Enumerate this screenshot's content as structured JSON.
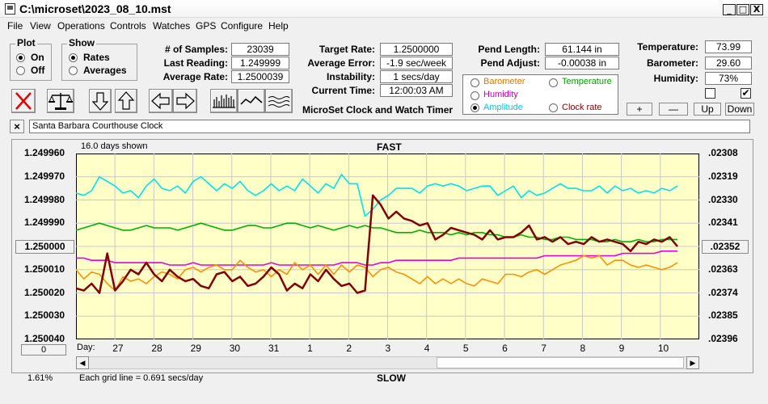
{
  "window": {
    "title": "C:\\microset\\2023_08_10.mst",
    "minimize_glyph": "_",
    "maximize_glyph": "□",
    "close_glyph": "X"
  },
  "menu": [
    "File",
    "View",
    "Operations",
    "Controls",
    "Watches",
    "GPS",
    "Configure",
    "Help"
  ],
  "plot_group": {
    "title": "Plot",
    "options": [
      "On",
      "Off"
    ],
    "selected": "On"
  },
  "show_group": {
    "title": "Show",
    "options": [
      "Rates",
      "Averages"
    ],
    "selected": "Rates"
  },
  "stats": {
    "samples_label": "# of Samples:",
    "samples": "23039",
    "last_reading_label": "Last Reading:",
    "last_reading": "1.249999",
    "average_rate_label": "Average Rate:",
    "average_rate": "1.2500039",
    "target_rate_label": "Target Rate:",
    "target_rate": "1.2500000",
    "average_error_label": "Average Error:",
    "average_error": "-1.9 sec/week",
    "instability_label": "Instability:",
    "instability": "1 secs/day",
    "current_time_label": "Current Time:",
    "current_time": "12:00:03 AM",
    "pend_length_label": "Pend Length:",
    "pend_length": "61.144 in",
    "pend_adjust_label": "Pend Adjust:",
    "pend_adjust": "-0.00038 in",
    "temperature_label": "Temperature:",
    "temperature": "73.99",
    "barometer_label": "Barometer:",
    "barometer": "29.60",
    "humidity_label": "Humidity:",
    "humidity": "73%"
  },
  "app_caption": "MicroSet Clock and Watch Timer",
  "aux_options": [
    {
      "label": "Barometer",
      "color": "#e07800"
    },
    {
      "label": "Temperature",
      "color": "#00a000"
    },
    {
      "label": "Humidity",
      "color": "#c000c0"
    },
    {
      "label": "Amplitude",
      "color": "#00c8e0"
    },
    {
      "label": "Clock rate",
      "color": "#800000"
    }
  ],
  "aux_selected": "Amplitude",
  "scale_buttons": {
    "plus": "+",
    "minus": "—",
    "up": "Up",
    "down": "Down"
  },
  "checkboxes": [
    false,
    true
  ],
  "clock_name": "Santa Barbara Courthouse Clock",
  "clock_close_glyph": "×",
  "plot": {
    "days_shown": "16.0 days shown",
    "top_label": "FAST",
    "bottom_label": "SLOW",
    "day_label": "Day:",
    "grid_note": "Each grid line = 0.691 secs/day",
    "percent": "1.61%",
    "center_button": "1.250000",
    "zero_button": "0",
    "right_button": ".02352"
  },
  "chart_data": {
    "type": "line",
    "background": "#ffffc8",
    "left_ticks": [
      "1.249960",
      "1.249970",
      "1.249980",
      "1.249990",
      "1.250000",
      "1.250010",
      "1.250020",
      "1.250030",
      "1.250040"
    ],
    "right_ticks": [
      ".02308",
      ".02319",
      ".02330",
      ".02341",
      ".02352",
      ".02363",
      ".02374",
      ".02385",
      ".02396"
    ],
    "x_ticks": [
      "27",
      "28",
      "29",
      "30",
      "31",
      "1",
      "2",
      "3",
      "4",
      "5",
      "6",
      "7",
      "8",
      "9",
      "10"
    ],
    "x_range": [
      0,
      16
    ],
    "y_range": [
      1.24996,
      1.25004
    ],
    "series": [
      {
        "color": "#00e0f0",
        "values": [
          1.249977,
          1.249978,
          1.249976,
          1.24997,
          1.249972,
          1.249974,
          1.249977,
          1.249976,
          1.249979,
          1.249974,
          1.249971,
          1.249975,
          1.249976,
          1.249974,
          1.249977,
          1.249972,
          1.24997,
          1.249973,
          1.249976,
          1.249973,
          1.249975,
          1.249972,
          1.249976,
          1.249978,
          1.249976,
          1.249973,
          1.249976,
          1.249974,
          1.249976,
          1.249971,
          1.249974,
          1.249977,
          1.249973,
          1.249975,
          1.249969,
          1.249973,
          1.249973,
          1.249987,
          1.249984,
          1.24998,
          1.249978,
          1.249975,
          1.249975,
          1.249975,
          1.249977,
          1.249974,
          1.249973,
          1.249974,
          1.249973,
          1.249974,
          1.249976,
          1.249975,
          1.249974,
          1.249974,
          1.249978,
          1.249976,
          1.249974,
          1.249979,
          1.249976,
          1.249978,
          1.249977,
          1.249975,
          1.249973,
          1.249975,
          1.249975,
          1.249976,
          1.249976,
          1.249974,
          1.249977,
          1.249974,
          1.249976,
          1.249975,
          1.249977,
          1.249976,
          1.249977,
          1.249975,
          1.249976,
          1.249974
        ]
      },
      {
        "color": "#00b000",
        "values": [
          1.249993,
          1.249992,
          1.249991,
          1.24999,
          1.249991,
          1.249992,
          1.249993,
          1.249993,
          1.249992,
          1.249991,
          1.249992,
          1.249992,
          1.249992,
          1.249993,
          1.249992,
          1.249991,
          1.24999,
          1.249991,
          1.249992,
          1.249993,
          1.249993,
          1.249992,
          1.249991,
          1.249991,
          1.249992,
          1.249992,
          1.249991,
          1.24999,
          1.24999,
          1.249991,
          1.249992,
          1.249991,
          1.249992,
          1.249993,
          1.249992,
          1.249991,
          1.249992,
          1.249991,
          1.249992,
          1.249992,
          1.249993,
          1.249994,
          1.249994,
          1.249994,
          1.249993,
          1.249994,
          1.249994,
          1.249994,
          1.249995,
          1.249994,
          1.249995,
          1.249994,
          1.249994,
          1.249995,
          1.249995,
          1.249996,
          1.249996,
          1.249995,
          1.249996,
          1.249996,
          1.249997,
          1.249997,
          1.249996,
          1.249996,
          1.249997,
          1.249997,
          1.249997,
          1.249998,
          1.249998,
          1.249997,
          1.249998,
          1.249998,
          1.249997,
          1.249998,
          1.249998,
          1.249997,
          1.249997,
          1.249997
        ]
      },
      {
        "color": "#e000e0",
        "values": [
          1.250005,
          1.250005,
          1.250006,
          1.250006,
          1.250006,
          1.250007,
          1.250007,
          1.250007,
          1.250007,
          1.250007,
          1.250007,
          1.250007,
          1.250008,
          1.250008,
          1.250008,
          1.250007,
          1.250008,
          1.250008,
          1.250008,
          1.250008,
          1.250008,
          1.250008,
          1.250008,
          1.250008,
          1.250008,
          1.250007,
          1.250008,
          1.250008,
          1.250008,
          1.250008,
          1.250008,
          1.250008,
          1.250008,
          1.250008,
          1.250007,
          1.250007,
          1.250007,
          1.250008,
          1.250008,
          1.250007,
          1.250007,
          1.250006,
          1.250006,
          1.250006,
          1.250006,
          1.250006,
          1.250006,
          1.250006,
          1.250006,
          1.250005,
          1.250005,
          1.250005,
          1.250005,
          1.250005,
          1.250005,
          1.250005,
          1.250005,
          1.250005,
          1.250005,
          1.250005,
          1.250004,
          1.250004,
          1.250004,
          1.250004,
          1.250004,
          1.250004,
          1.250004,
          1.250004,
          1.250004,
          1.250004,
          1.250003,
          1.250003,
          1.250003,
          1.250003,
          1.250003,
          1.250002,
          1.250002,
          1.250002
        ]
      },
      {
        "color": "#ff9000",
        "values": [
          1.25001,
          1.250014,
          1.250011,
          1.250012,
          1.250016,
          1.250019,
          1.250013,
          1.250015,
          1.250014,
          1.250016,
          1.250013,
          1.250011,
          1.250012,
          1.250014,
          1.25001,
          1.250009,
          1.250011,
          1.250009,
          1.250008,
          1.25001,
          1.25001,
          1.250006,
          1.250009,
          1.250011,
          1.25001,
          1.250013,
          1.25001,
          1.250012,
          1.250007,
          1.25001,
          1.250008,
          1.250012,
          1.250008,
          1.250012,
          1.250008,
          1.250011,
          1.250008,
          1.250009,
          1.250013,
          1.25001,
          1.250009,
          1.250011,
          1.250012,
          1.250014,
          1.250016,
          1.250013,
          1.250016,
          1.250014,
          1.250016,
          1.250014,
          1.250016,
          1.250017,
          1.250014,
          1.250015,
          1.250016,
          1.250012,
          1.250012,
          1.250013,
          1.250011,
          1.25001,
          1.250012,
          1.25001,
          1.250008,
          1.250007,
          1.250006,
          1.250004,
          1.250005,
          1.250004,
          1.250008,
          1.250006,
          1.250006,
          1.250008,
          1.250009,
          1.250008,
          1.250009,
          1.25001,
          1.250009,
          1.250007
        ]
      },
      {
        "color": "#800000",
        "values": [
          1.250018,
          1.250019,
          1.250016,
          1.25002,
          1.250003,
          1.250019,
          1.250015,
          1.25001,
          1.250012,
          1.250007,
          1.250012,
          1.250015,
          1.25001,
          1.250013,
          1.250015,
          1.250014,
          1.250017,
          1.250018,
          1.250012,
          1.250011,
          1.250015,
          1.250013,
          1.250017,
          1.250016,
          1.250013,
          1.250009,
          1.250012,
          1.250019,
          1.250016,
          1.250018,
          1.250012,
          1.250015,
          1.25001,
          1.250014,
          1.250017,
          1.250016,
          1.25002,
          1.250019,
          1.249978,
          1.249982,
          1.249988,
          1.249985,
          1.249988,
          1.249989,
          1.249991,
          1.24999,
          1.249997,
          1.249995,
          1.249992,
          1.249993,
          1.249994,
          1.249995,
          1.249997,
          1.249993,
          1.249997,
          1.249996,
          1.249996,
          1.249994,
          1.249991,
          1.249997,
          1.249996,
          1.249998,
          1.249996,
          1.249999,
          1.249998,
          1.249999,
          1.249996,
          1.249998,
          1.249997,
          1.249998,
          1.249999,
          1.250002,
          1.249998,
          1.249999,
          1.249997,
          1.249998,
          1.249996,
          1.25
        ]
      }
    ]
  }
}
